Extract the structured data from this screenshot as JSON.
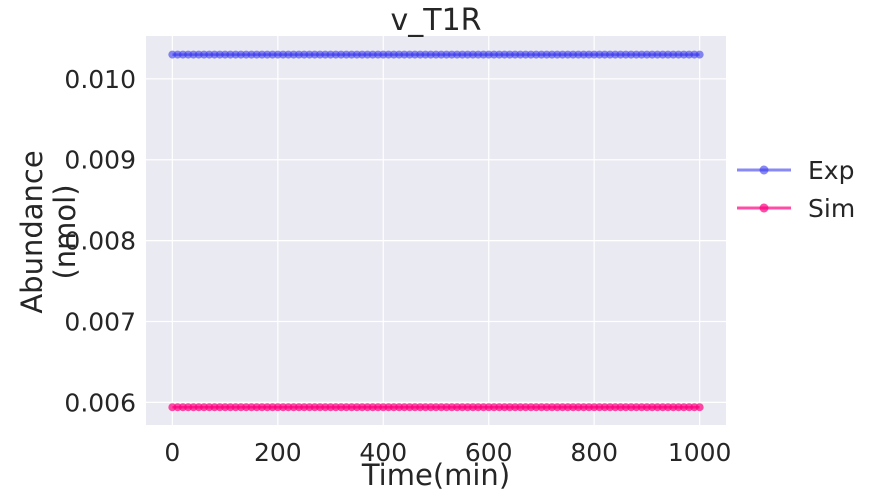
{
  "chart_data": {
    "type": "scatter",
    "title": "v_T1R",
    "xlabel": "Time(min)",
    "ylabel_lines": [
      "Abundance",
      "(nmol)"
    ],
    "xlim": [
      -50,
      1050
    ],
    "ylim": [
      0.00572,
      0.01053
    ],
    "x_ticks": [
      0,
      200,
      400,
      600,
      800,
      1000
    ],
    "x_tick_labels": [
      "0",
      "200",
      "400",
      "600",
      "800",
      "1000"
    ],
    "y_ticks": [
      0.006,
      0.007,
      0.008,
      0.009,
      0.01
    ],
    "y_tick_labels": [
      "0.006",
      "0.007",
      "0.008",
      "0.009",
      "0.010"
    ],
    "grid": true,
    "legend_position": "right-outside",
    "x_start": 0,
    "x_end": 1000,
    "x_step": 10,
    "series": [
      {
        "name": "Exp",
        "value": 0.0103,
        "color": "#3a3aee",
        "opacity": 0.6
      },
      {
        "name": "Sim",
        "value": 0.00594,
        "color": "#ff0080",
        "opacity": 0.7
      }
    ]
  }
}
